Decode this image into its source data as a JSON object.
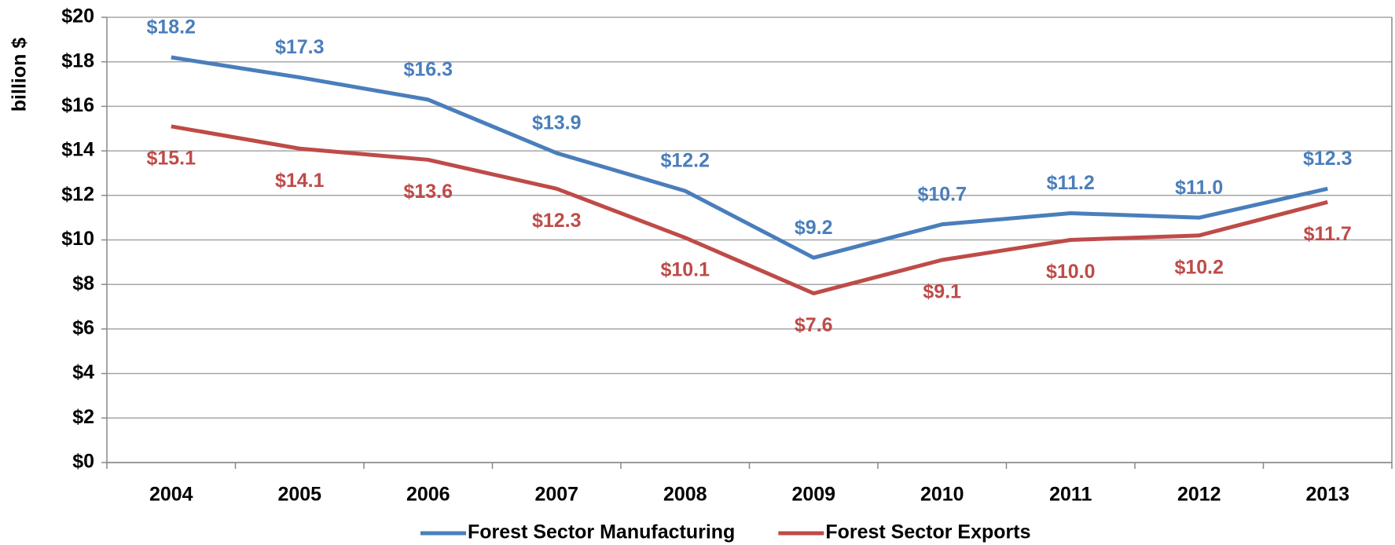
{
  "chart_data": {
    "type": "line",
    "y_label": "billion $",
    "categories": [
      "2004",
      "2005",
      "2006",
      "2007",
      "2008",
      "2009",
      "2010",
      "2011",
      "2012",
      "2013"
    ],
    "series": [
      {
        "name": "Forest Sector Manufacturing",
        "color": "#4a7ebb",
        "values": [
          18.2,
          17.3,
          16.3,
          13.9,
          12.2,
          9.2,
          10.7,
          11.2,
          11.0,
          12.3
        ],
        "value_labels": [
          "$18.2",
          "$17.3",
          "$16.3",
          "$13.9",
          "$12.2",
          "$9.2",
          "$10.7",
          "$11.2",
          "$11.0",
          "$12.3"
        ]
      },
      {
        "name": "Forest Sector Exports",
        "color": "#be4b48",
        "values": [
          15.1,
          14.1,
          13.6,
          12.3,
          10.1,
          7.6,
          9.1,
          10.0,
          10.2,
          11.7
        ],
        "value_labels": [
          "$15.1",
          "$14.1",
          "$13.6",
          "$12.3",
          "$10.1",
          "$7.6",
          "$9.1",
          "$10.0",
          "$10.2",
          "$11.7"
        ]
      }
    ],
    "ylim": [
      0,
      20
    ],
    "yticks": [
      {
        "value": 0,
        "label": "$0"
      },
      {
        "value": 2,
        "label": "$2"
      },
      {
        "value": 4,
        "label": "$4"
      },
      {
        "value": 6,
        "label": "$6"
      },
      {
        "value": 8,
        "label": "$8"
      },
      {
        "value": 10,
        "label": "$10"
      },
      {
        "value": 12,
        "label": "$12"
      },
      {
        "value": 14,
        "label": "$14"
      },
      {
        "value": 16,
        "label": "$16"
      },
      {
        "value": 18,
        "label": "$18"
      },
      {
        "value": 20,
        "label": "$20"
      }
    ],
    "grid": true,
    "legend": "bottom"
  }
}
